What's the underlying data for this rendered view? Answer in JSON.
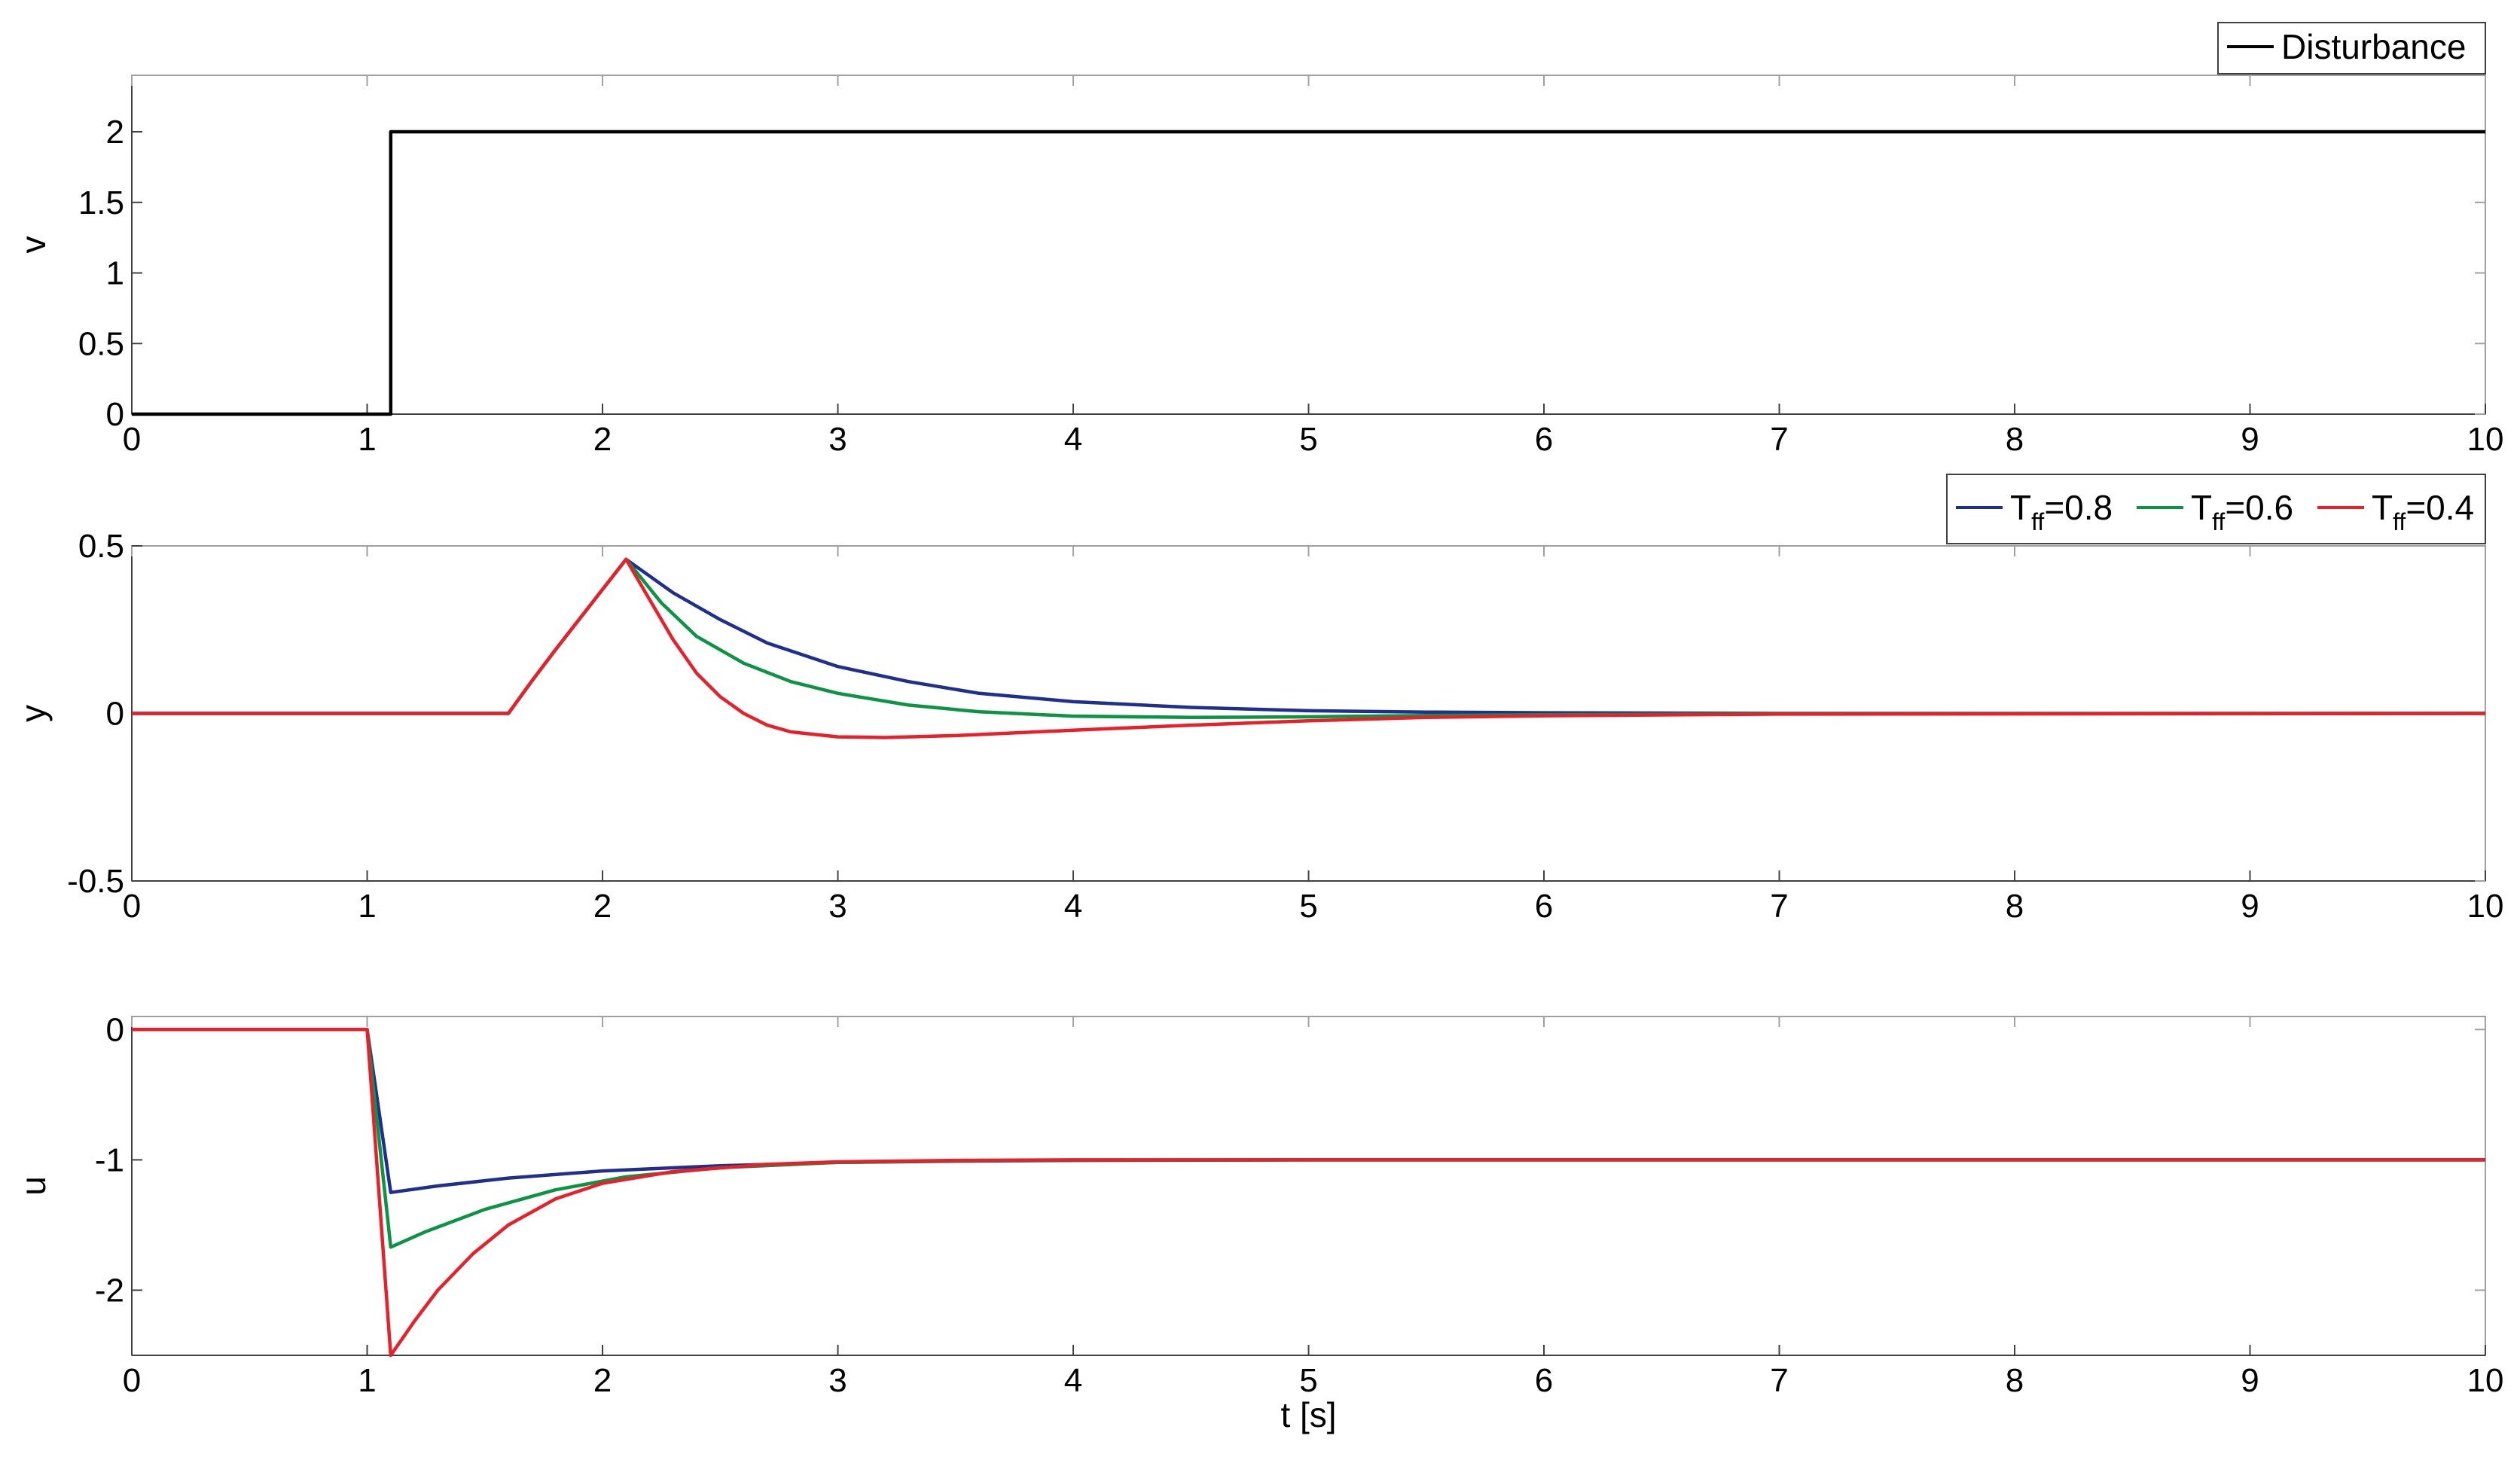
{
  "colors": {
    "disturbance": "#000000",
    "tff_08": "#1f2f8f",
    "tff_06": "#0b9444",
    "tff_04": "#e8202a",
    "axis": "#000000",
    "tick_grey": "#a0a0a0"
  },
  "chart_data": [
    {
      "type": "line",
      "ylabel": "v",
      "xlabel": "",
      "xlim": [
        0,
        10
      ],
      "ylim": [
        0,
        2.4
      ],
      "xticks": [
        "0",
        "1",
        "2",
        "3",
        "4",
        "5",
        "6",
        "7",
        "8",
        "9",
        "10"
      ],
      "yticks": [
        {
          "value": 0,
          "label": "0"
        },
        {
          "value": 0.5,
          "label": "0.5"
        },
        {
          "value": 1,
          "label": "1"
        },
        {
          "value": 1.5,
          "label": "1.5"
        },
        {
          "value": 2,
          "label": "2"
        }
      ],
      "legend_position": "top-right",
      "series": [
        {
          "name": "Disturbance",
          "color": "#000000",
          "points": [
            [
              0,
              0
            ],
            [
              1.1,
              0
            ],
            [
              1.1,
              2
            ],
            [
              10,
              2
            ]
          ]
        }
      ]
    },
    {
      "type": "line",
      "ylabel": "y",
      "xlabel": "",
      "xlim": [
        0,
        10
      ],
      "ylim": [
        -0.5,
        0.5
      ],
      "xticks": [
        "0",
        "1",
        "2",
        "3",
        "4",
        "5",
        "6",
        "7",
        "8",
        "9",
        "10"
      ],
      "yticks": [
        {
          "value": -0.5,
          "label": "-0.5"
        },
        {
          "value": 0,
          "label": "0"
        },
        {
          "value": 0.5,
          "label": "0.5"
        }
      ],
      "legend_position": "top-right",
      "series": [
        {
          "name": "T",
          "subscript": "ff",
          "suffix": "=0.8",
          "color": "#1f2f8f",
          "points": [
            [
              0,
              0
            ],
            [
              1.6,
              0
            ],
            [
              1.7,
              0.097
            ],
            [
              1.8,
              0.19
            ],
            [
              1.9,
              0.28
            ],
            [
              2.0,
              0.37
            ],
            [
              2.1,
              0.46
            ],
            [
              2.3,
              0.36
            ],
            [
              2.5,
              0.28
            ],
            [
              2.7,
              0.21
            ],
            [
              3.0,
              0.14
            ],
            [
              3.3,
              0.095
            ],
            [
              3.6,
              0.06
            ],
            [
              4.0,
              0.035
            ],
            [
              4.5,
              0.018
            ],
            [
              5.0,
              0.008
            ],
            [
              5.5,
              0.004
            ],
            [
              6.0,
              0.002
            ],
            [
              7.0,
              0.0
            ],
            [
              10,
              0
            ]
          ]
        },
        {
          "name": "T",
          "subscript": "ff",
          "suffix": "=0.6",
          "color": "#0b9444",
          "points": [
            [
              0,
              0
            ],
            [
              1.6,
              0
            ],
            [
              1.7,
              0.097
            ],
            [
              1.8,
              0.19
            ],
            [
              1.9,
              0.28
            ],
            [
              2.0,
              0.37
            ],
            [
              2.1,
              0.46
            ],
            [
              2.25,
              0.33
            ],
            [
              2.4,
              0.23
            ],
            [
              2.6,
              0.15
            ],
            [
              2.8,
              0.095
            ],
            [
              3.0,
              0.06
            ],
            [
              3.3,
              0.025
            ],
            [
              3.6,
              0.005
            ],
            [
              4.0,
              -0.008
            ],
            [
              4.5,
              -0.012
            ],
            [
              5.0,
              -0.01
            ],
            [
              5.5,
              -0.006
            ],
            [
              6.0,
              -0.004
            ],
            [
              7.0,
              -0.001
            ],
            [
              10,
              0
            ]
          ]
        },
        {
          "name": "T",
          "subscript": "ff",
          "suffix": "=0.4",
          "color": "#e8202a",
          "points": [
            [
              0,
              0
            ],
            [
              1.6,
              0
            ],
            [
              1.7,
              0.097
            ],
            [
              1.8,
              0.19
            ],
            [
              1.9,
              0.28
            ],
            [
              2.0,
              0.37
            ],
            [
              2.1,
              0.46
            ],
            [
              2.2,
              0.34
            ],
            [
              2.3,
              0.22
            ],
            [
              2.4,
              0.12
            ],
            [
              2.5,
              0.05
            ],
            [
              2.6,
              0.0
            ],
            [
              2.7,
              -0.035
            ],
            [
              2.8,
              -0.055
            ],
            [
              3.0,
              -0.07
            ],
            [
              3.2,
              -0.072
            ],
            [
              3.5,
              -0.066
            ],
            [
              4.0,
              -0.05
            ],
            [
              4.5,
              -0.035
            ],
            [
              5.0,
              -0.022
            ],
            [
              5.5,
              -0.012
            ],
            [
              6.0,
              -0.007
            ],
            [
              7.0,
              -0.002
            ],
            [
              10,
              0
            ]
          ]
        }
      ]
    },
    {
      "type": "line",
      "ylabel": "u",
      "xlabel": "t [s]",
      "xlim": [
        0,
        10
      ],
      "ylim": [
        -2.5,
        0.1
      ],
      "xticks": [
        "0",
        "1",
        "2",
        "3",
        "4",
        "5",
        "6",
        "7",
        "8",
        "9",
        "10"
      ],
      "yticks": [
        {
          "value": -2,
          "label": "-2"
        },
        {
          "value": -1,
          "label": "-1"
        },
        {
          "value": 0,
          "label": "0"
        }
      ],
      "series": [
        {
          "name": "T_ff=0.8",
          "color": "#1f2f8f",
          "points": [
            [
              0,
              0
            ],
            [
              1.0,
              0
            ],
            [
              1.1,
              -1.25
            ],
            [
              1.3,
              -1.2
            ],
            [
              1.6,
              -1.14
            ],
            [
              2.0,
              -1.085
            ],
            [
              2.5,
              -1.045
            ],
            [
              3.0,
              -1.02
            ],
            [
              3.5,
              -1.01
            ],
            [
              4.0,
              -1.004
            ],
            [
              5.0,
              -1.0
            ],
            [
              10,
              -1.0
            ]
          ]
        },
        {
          "name": "T_ff=0.6",
          "color": "#0b9444",
          "points": [
            [
              0,
              0
            ],
            [
              1.0,
              0
            ],
            [
              1.1,
              -1.67
            ],
            [
              1.25,
              -1.55
            ],
            [
              1.5,
              -1.38
            ],
            [
              1.8,
              -1.23
            ],
            [
              2.1,
              -1.13
            ],
            [
              2.5,
              -1.06
            ],
            [
              3.0,
              -1.02
            ],
            [
              3.5,
              -1.008
            ],
            [
              4.0,
              -1.002
            ],
            [
              5.0,
              -1.0
            ],
            [
              10,
              -1.0
            ]
          ]
        },
        {
          "name": "T_ff=0.4",
          "color": "#e8202a",
          "points": [
            [
              0,
              0
            ],
            [
              1.0,
              0
            ],
            [
              1.1,
              -2.5
            ],
            [
              1.2,
              -2.24
            ],
            [
              1.3,
              -2.0
            ],
            [
              1.45,
              -1.72
            ],
            [
              1.6,
              -1.5
            ],
            [
              1.8,
              -1.3
            ],
            [
              2.0,
              -1.18
            ],
            [
              2.3,
              -1.09
            ],
            [
              2.7,
              -1.035
            ],
            [
              3.0,
              -1.015
            ],
            [
              3.5,
              -1.004
            ],
            [
              4.0,
              -1.0
            ],
            [
              10,
              -1.0
            ]
          ]
        }
      ]
    }
  ]
}
